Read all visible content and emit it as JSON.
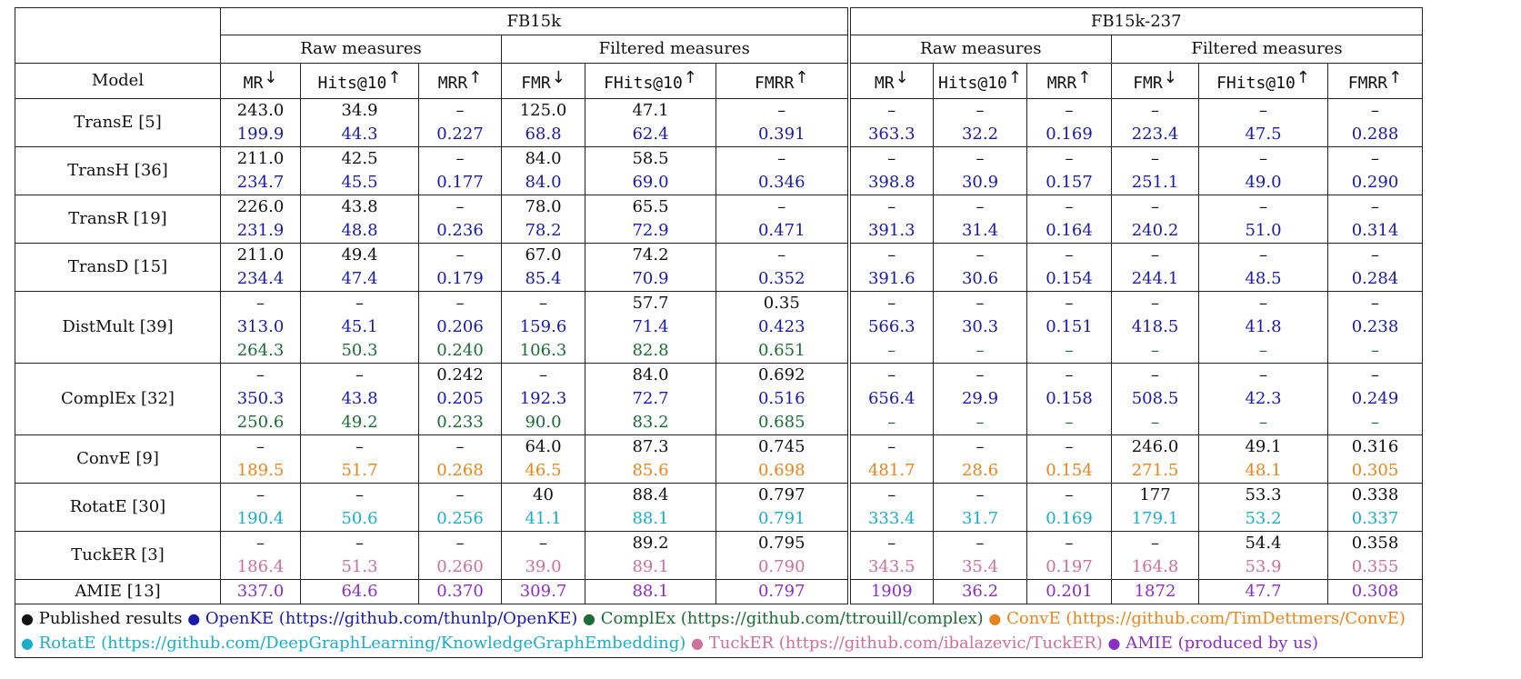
{
  "datasets": [
    "FB15k",
    "FB15k-237"
  ],
  "groups": [
    "Raw measures",
    "Filtered measures"
  ],
  "model_header": "Model",
  "columns": [
    {
      "label": "MR",
      "arrow": "↓"
    },
    {
      "label": "Hits@10",
      "arrow": "↑"
    },
    {
      "label": "MRR",
      "arrow": "↑"
    },
    {
      "label": "FMR",
      "arrow": "↓"
    },
    {
      "label": "FHits@10",
      "arrow": "↑"
    },
    {
      "label": "FMRR",
      "arrow": "↑"
    }
  ],
  "colors": {
    "published": "#111111",
    "openke": "#1a1aa8",
    "complex": "#1d6b36",
    "conve": "#e8851a",
    "rotate": "#1aaec8",
    "tucker": "#cf6f9c",
    "amie": "#8a2fc4"
  },
  "models": [
    {
      "name": "TransE [5]",
      "rows": [
        {
          "src": "published",
          "values": [
            "243.0",
            "34.9",
            "–",
            "125.0",
            "47.1",
            "–",
            "–",
            "–",
            "–",
            "–",
            "–",
            "–"
          ]
        },
        {
          "src": "openke",
          "values": [
            "199.9",
            "44.3",
            "0.227",
            "68.8",
            "62.4",
            "0.391",
            "363.3",
            "32.2",
            "0.169",
            "223.4",
            "47.5",
            "0.288"
          ]
        }
      ]
    },
    {
      "name": "TransH [36]",
      "rows": [
        {
          "src": "published",
          "values": [
            "211.0",
            "42.5",
            "–",
            "84.0",
            "58.5",
            "–",
            "–",
            "–",
            "–",
            "–",
            "–",
            "–"
          ]
        },
        {
          "src": "openke",
          "values": [
            "234.7",
            "45.5",
            "0.177",
            "84.0",
            "69.0",
            "0.346",
            "398.8",
            "30.9",
            "0.157",
            "251.1",
            "49.0",
            "0.290"
          ]
        }
      ]
    },
    {
      "name": "TransR [19]",
      "rows": [
        {
          "src": "published",
          "values": [
            "226.0",
            "43.8",
            "–",
            "78.0",
            "65.5",
            "–",
            "–",
            "–",
            "–",
            "–",
            "–",
            "–"
          ]
        },
        {
          "src": "openke",
          "values": [
            "231.9",
            "48.8",
            "0.236",
            "78.2",
            "72.9",
            "0.471",
            "391.3",
            "31.4",
            "0.164",
            "240.2",
            "51.0",
            "0.314"
          ]
        }
      ]
    },
    {
      "name": "TransD [15]",
      "rows": [
        {
          "src": "published",
          "values": [
            "211.0",
            "49.4",
            "–",
            "67.0",
            "74.2",
            "–",
            "–",
            "–",
            "–",
            "–",
            "–",
            "–"
          ]
        },
        {
          "src": "openke",
          "values": [
            "234.4",
            "47.4",
            "0.179",
            "85.4",
            "70.9",
            "0.352",
            "391.6",
            "30.6",
            "0.154",
            "244.1",
            "48.5",
            "0.284"
          ]
        }
      ]
    },
    {
      "name": "DistMult [39]",
      "rows": [
        {
          "src": "published",
          "values": [
            "–",
            "–",
            "–",
            "–",
            "57.7",
            "0.35",
            "–",
            "–",
            "–",
            "–",
            "–",
            "–"
          ]
        },
        {
          "src": "openke",
          "values": [
            "313.0",
            "45.1",
            "0.206",
            "159.6",
            "71.4",
            "0.423",
            "566.3",
            "30.3",
            "0.151",
            "418.5",
            "41.8",
            "0.238"
          ]
        },
        {
          "src": "complex",
          "values": [
            "264.3",
            "50.3",
            "0.240",
            "106.3",
            "82.8",
            "0.651",
            "–",
            "–",
            "–",
            "–",
            "–",
            "–"
          ]
        }
      ]
    },
    {
      "name": "ComplEx [32]",
      "rows": [
        {
          "src": "published",
          "values": [
            "–",
            "–",
            "0.242",
            "–",
            "84.0",
            "0.692",
            "–",
            "–",
            "–",
            "–",
            "–",
            "–"
          ]
        },
        {
          "src": "openke",
          "values": [
            "350.3",
            "43.8",
            "0.205",
            "192.3",
            "72.7",
            "0.516",
            "656.4",
            "29.9",
            "0.158",
            "508.5",
            "42.3",
            "0.249"
          ]
        },
        {
          "src": "complex",
          "values": [
            "250.6",
            "49.2",
            "0.233",
            "90.0",
            "83.2",
            "0.685",
            "–",
            "–",
            "–",
            "–",
            "–",
            "–"
          ]
        }
      ]
    },
    {
      "name": "ConvE [9]",
      "rows": [
        {
          "src": "published",
          "values": [
            "–",
            "–",
            "–",
            "64.0",
            "87.3",
            "0.745",
            "–",
            "–",
            "–",
            "246.0",
            "49.1",
            "0.316"
          ]
        },
        {
          "src": "conve",
          "values": [
            "189.5",
            "51.7",
            "0.268",
            "46.5",
            "85.6",
            "0.698",
            "481.7",
            "28.6",
            "0.154",
            "271.5",
            "48.1",
            "0.305"
          ]
        }
      ]
    },
    {
      "name": "RotatE [30]",
      "rows": [
        {
          "src": "published",
          "values": [
            "–",
            "–",
            "–",
            "40",
            "88.4",
            "0.797",
            "–",
            "–",
            "–",
            "177",
            "53.3",
            "0.338"
          ]
        },
        {
          "src": "rotate",
          "values": [
            "190.4",
            "50.6",
            "0.256",
            "41.1",
            "88.1",
            "0.791",
            "333.4",
            "31.7",
            "0.169",
            "179.1",
            "53.2",
            "0.337"
          ]
        }
      ]
    },
    {
      "name": "TuckER [3]",
      "rows": [
        {
          "src": "published",
          "values": [
            "–",
            "–",
            "–",
            "–",
            "89.2",
            "0.795",
            "–",
            "–",
            "–",
            "–",
            "54.4",
            "0.358"
          ]
        },
        {
          "src": "tucker",
          "values": [
            "186.4",
            "51.3",
            "0.260",
            "39.0",
            "89.1",
            "0.790",
            "343.5",
            "35.4",
            "0.197",
            "164.8",
            "53.9",
            "0.355"
          ]
        }
      ]
    },
    {
      "name": "AMIE [13]",
      "rows": [
        {
          "src": "amie",
          "values": [
            "337.0",
            "64.6",
            "0.370",
            "309.7",
            "88.1",
            "0.797",
            "1909",
            "36.2",
            "0.201",
            "1872",
            "47.7",
            "0.308"
          ]
        }
      ]
    }
  ],
  "legend": {
    "lines": [
      [
        {
          "src": "published",
          "text": "Published results"
        },
        {
          "src": "openke",
          "text": "OpenKE (https://github.com/thunlp/OpenKE)"
        },
        {
          "src": "complex",
          "text": "ComplEx (https://github.com/ttrouill/complex)"
        },
        {
          "src": "conve",
          "text": "ConvE (https://github.com/TimDettmers/ConvE)"
        }
      ],
      [
        {
          "src": "rotate",
          "text": "RotatE (https://github.com/DeepGraphLearning/KnowledgeGraphEmbedding)"
        },
        {
          "src": "tucker",
          "text": "TuckER (https://github.com/ibalazevic/TuckER)"
        },
        {
          "src": "amie",
          "text": "AMIE (produced by us)"
        }
      ]
    ]
  }
}
